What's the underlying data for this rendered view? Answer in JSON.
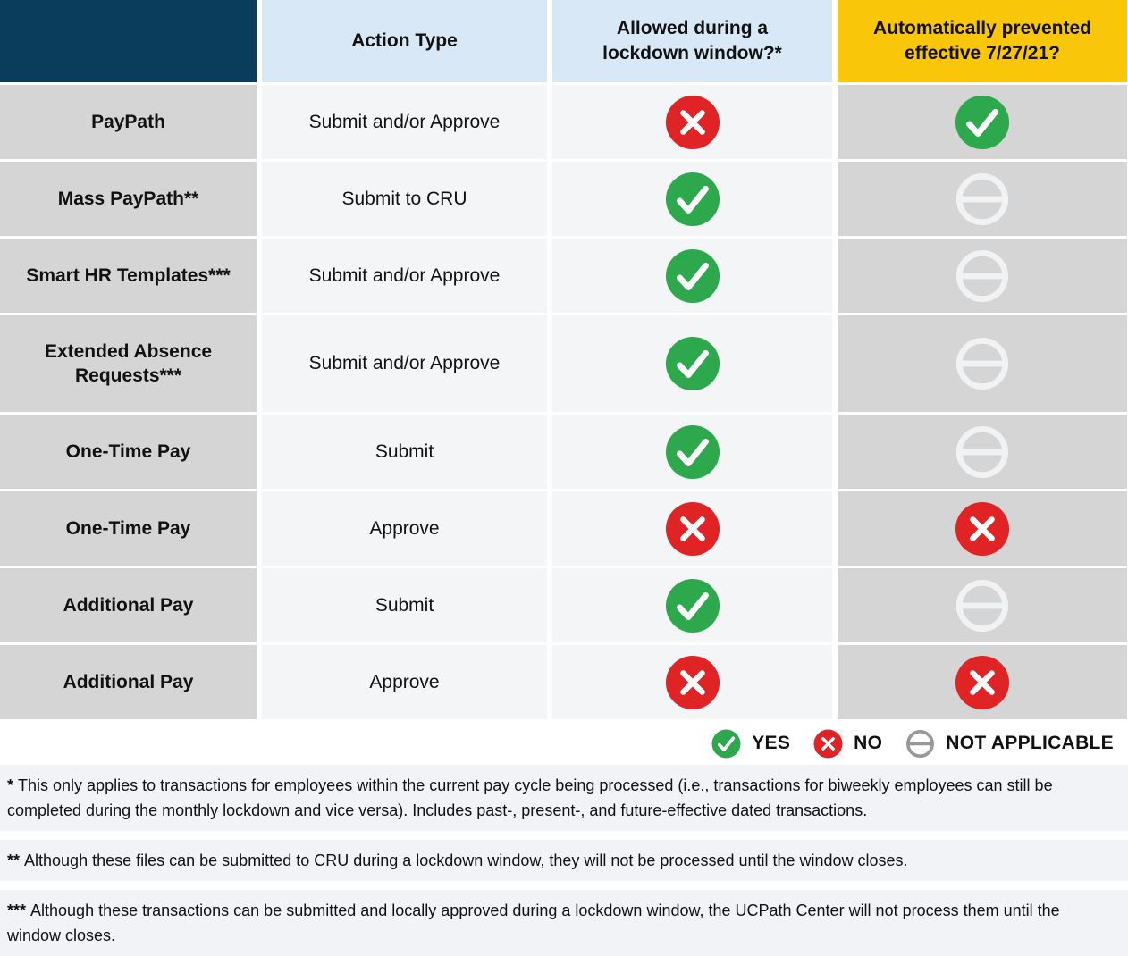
{
  "table": {
    "headers": [
      {
        "key": "row-label",
        "label": ""
      },
      {
        "key": "action-type",
        "label": "Action Type"
      },
      {
        "key": "allowed",
        "label": "Allowed during a\nlockdown window?*"
      },
      {
        "key": "prevented",
        "label": "Automatically prevented\neffective 7/27/21?"
      }
    ],
    "rows": [
      {
        "label": "PayPath",
        "action": "Submit and/or Approve",
        "allowed": "no",
        "prevented": "yes"
      },
      {
        "label": "Mass PayPath**",
        "action": "Submit to CRU",
        "allowed": "yes",
        "prevented": "na"
      },
      {
        "label": "Smart HR Templates***",
        "action": "Submit and/or Approve",
        "allowed": "yes",
        "prevented": "na"
      },
      {
        "label": "Extended Absence Requests***",
        "action": "Submit and/or Approve",
        "allowed": "yes",
        "prevented": "na"
      },
      {
        "label": "One-Time Pay",
        "action": "Submit",
        "allowed": "yes",
        "prevented": "na"
      },
      {
        "label": "One-Time Pay",
        "action": "Approve",
        "allowed": "no",
        "prevented": "no"
      },
      {
        "label": "Additional Pay",
        "action": "Submit",
        "allowed": "yes",
        "prevented": "na"
      },
      {
        "label": "Additional Pay",
        "action": "Approve",
        "allowed": "no",
        "prevented": "no"
      }
    ]
  },
  "legend": {
    "items": [
      {
        "icon": "yes",
        "label": "YES"
      },
      {
        "icon": "no",
        "label": "NO"
      },
      {
        "icon": "na",
        "label": "NOT APPLICABLE"
      }
    ]
  },
  "footnotes": [
    {
      "marker": "*",
      "text": "This only applies to transactions for employees within the current pay cycle being processed (i.e., transactions for biweekly employees can still be completed during the monthly lockdown and vice versa). Includes past-, present-, and future-effective dated transactions."
    },
    {
      "marker": "**",
      "text": "Although these files can be submitted to CRU during a lockdown window, they will not be processed until the window closes."
    },
    {
      "marker": "***",
      "text": "Although these transactions can be submitted and locally approved during a lockdown window, the UCPath Center will not process them until the window closes."
    }
  ],
  "colors": {
    "header_navy": "#0A3C5C",
    "header_blue": "#D9E8F7",
    "header_gold": "#FAC60A",
    "row_label_gray": "#D5D5D5",
    "data_cell": "#F4F5F7",
    "yes_green": "#2DA84D",
    "no_red": "#E02425",
    "na_gray_legend": "#98989A",
    "na_white_on_gray": "#F1F2F4",
    "footnote_band": "#F1F3F6"
  }
}
